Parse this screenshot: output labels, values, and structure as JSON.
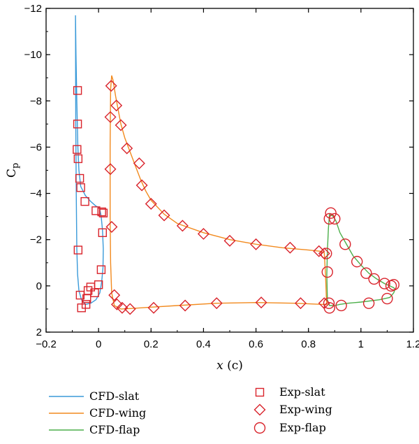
{
  "chart_data": {
    "type": "line",
    "xlabel": "x (c)",
    "ylabel": "Cp",
    "xlim": [
      -0.2,
      1.2
    ],
    "ylim": [
      2,
      -12
    ],
    "y_inverted": true,
    "grid": false,
    "legend_placement": "bottom",
    "x_ticks": [
      "−0.2",
      "0",
      "0.2",
      "0.4",
      "0.6",
      "0.8",
      "1",
      "1.2"
    ],
    "x_tick_values": [
      -0.2,
      0,
      0.2,
      0.4,
      0.6,
      0.8,
      1,
      1.2
    ],
    "y_ticks": [
      "−12",
      "−10",
      "−8",
      "−6",
      "−4",
      "−2",
      "0",
      "2"
    ],
    "y_tick_values": [
      -12,
      -10,
      -8,
      -6,
      -4,
      -2,
      0,
      2
    ],
    "colors": {
      "CFD-slat": "#3a9ad9",
      "CFD-wing": "#f28a1e",
      "CFD-flap": "#4caf4a",
      "exp": "#d9232b"
    },
    "series": [
      {
        "name": "CFD-slat",
        "kind": "line",
        "points": [
          [
            -0.088,
            -11.7
          ],
          [
            -0.086,
            -10.0
          ],
          [
            -0.083,
            -8.0
          ],
          [
            -0.079,
            -6.0
          ],
          [
            -0.075,
            -5.0
          ],
          [
            -0.068,
            -4.3
          ],
          [
            -0.05,
            -3.9
          ],
          [
            -0.03,
            -3.65
          ],
          [
            -0.01,
            -3.45
          ],
          [
            0.0,
            -3.4
          ],
          [
            0.005,
            -3.3
          ],
          [
            0.01,
            -3.0
          ],
          [
            0.015,
            -2.4
          ],
          [
            0.018,
            -1.6
          ],
          [
            0.017,
            -0.8
          ],
          [
            0.012,
            -0.2
          ],
          [
            0.005,
            0.3
          ],
          [
            -0.01,
            0.6
          ],
          [
            -0.03,
            0.75
          ],
          [
            -0.05,
            0.8
          ],
          [
            -0.065,
            0.6
          ],
          [
            -0.075,
            0.2
          ],
          [
            -0.08,
            -0.5
          ],
          [
            -0.083,
            -1.6
          ],
          [
            -0.085,
            -4.0
          ],
          [
            -0.087,
            -7.0
          ],
          [
            -0.088,
            -11.7
          ]
        ]
      },
      {
        "name": "CFD-wing",
        "kind": "line",
        "points": [
          [
            0.05,
            -9.1
          ],
          [
            0.055,
            -8.9
          ],
          [
            0.065,
            -8.2
          ],
          [
            0.075,
            -7.6
          ],
          [
            0.085,
            -7.0
          ],
          [
            0.1,
            -6.4
          ],
          [
            0.12,
            -5.8
          ],
          [
            0.14,
            -5.2
          ],
          [
            0.16,
            -4.6
          ],
          [
            0.18,
            -4.1
          ],
          [
            0.2,
            -3.7
          ],
          [
            0.25,
            -3.1
          ],
          [
            0.3,
            -2.7
          ],
          [
            0.4,
            -2.3
          ],
          [
            0.5,
            -2.0
          ],
          [
            0.6,
            -1.8
          ],
          [
            0.7,
            -1.65
          ],
          [
            0.8,
            -1.55
          ],
          [
            0.845,
            -1.5
          ],
          [
            0.86,
            -1.45
          ],
          [
            0.865,
            -0.5
          ],
          [
            0.868,
            0.5
          ],
          [
            0.87,
            0.8
          ],
          [
            0.85,
            0.8
          ],
          [
            0.75,
            0.75
          ],
          [
            0.6,
            0.72
          ],
          [
            0.45,
            0.75
          ],
          [
            0.3,
            0.85
          ],
          [
            0.2,
            0.92
          ],
          [
            0.12,
            0.98
          ],
          [
            0.085,
            1.0
          ],
          [
            0.06,
            0.85
          ],
          [
            0.05,
            0.3
          ],
          [
            0.046,
            -1.0
          ],
          [
            0.044,
            -3.0
          ],
          [
            0.044,
            -6.0
          ],
          [
            0.046,
            -8.5
          ],
          [
            0.05,
            -9.1
          ]
        ]
      },
      {
        "name": "CFD-flap",
        "kind": "line",
        "points": [
          [
            0.88,
            -3.1
          ],
          [
            0.895,
            -3.0
          ],
          [
            0.905,
            -2.8
          ],
          [
            0.92,
            -2.3
          ],
          [
            0.94,
            -1.9
          ],
          [
            0.97,
            -1.3
          ],
          [
            1.0,
            -0.9
          ],
          [
            1.03,
            -0.55
          ],
          [
            1.06,
            -0.3
          ],
          [
            1.09,
            -0.1
          ],
          [
            1.11,
            0.0
          ],
          [
            1.125,
            0.08
          ],
          [
            1.13,
            0.15
          ],
          [
            1.125,
            0.3
          ],
          [
            1.11,
            0.5
          ],
          [
            1.07,
            0.6
          ],
          [
            1.0,
            0.7
          ],
          [
            0.95,
            0.75
          ],
          [
            0.92,
            0.8
          ],
          [
            0.9,
            0.85
          ],
          [
            0.88,
            0.85
          ],
          [
            0.872,
            0.6
          ],
          [
            0.87,
            -0.5
          ],
          [
            0.872,
            -1.5
          ],
          [
            0.876,
            -2.5
          ],
          [
            0.88,
            -3.1
          ]
        ]
      },
      {
        "name": "Exp-slat",
        "kind": "square",
        "points": [
          [
            -0.08,
            -8.45
          ],
          [
            -0.08,
            -7.0
          ],
          [
            -0.082,
            -5.9
          ],
          [
            -0.078,
            -5.5
          ],
          [
            -0.072,
            -4.65
          ],
          [
            -0.068,
            -4.25
          ],
          [
            -0.052,
            -3.65
          ],
          [
            -0.01,
            -3.25
          ],
          [
            0.012,
            -3.2
          ],
          [
            0.018,
            -3.15
          ],
          [
            0.015,
            -2.3
          ],
          [
            0.01,
            -0.7
          ],
          [
            0.0,
            -0.05
          ],
          [
            -0.015,
            0.3
          ],
          [
            -0.03,
            0.05
          ],
          [
            -0.04,
            0.2
          ],
          [
            -0.045,
            0.55
          ],
          [
            -0.048,
            0.8
          ],
          [
            -0.065,
            0.95
          ],
          [
            -0.07,
            0.4
          ],
          [
            -0.078,
            -1.55
          ]
        ]
      },
      {
        "name": "Exp-wing",
        "kind": "diamond",
        "points": [
          [
            0.048,
            -8.65
          ],
          [
            0.068,
            -7.8
          ],
          [
            0.085,
            -6.95
          ],
          [
            0.108,
            -5.95
          ],
          [
            0.155,
            -5.3
          ],
          [
            0.165,
            -4.35
          ],
          [
            0.2,
            -3.55
          ],
          [
            0.25,
            -3.05
          ],
          [
            0.32,
            -2.6
          ],
          [
            0.4,
            -2.25
          ],
          [
            0.5,
            -1.95
          ],
          [
            0.6,
            -1.8
          ],
          [
            0.73,
            -1.65
          ],
          [
            0.84,
            -1.5
          ],
          [
            0.86,
            -1.4
          ],
          [
            0.045,
            -7.3
          ],
          [
            0.045,
            -5.05
          ],
          [
            0.05,
            -2.55
          ],
          [
            0.06,
            0.4
          ],
          [
            0.07,
            0.8
          ],
          [
            0.09,
            0.95
          ],
          [
            0.12,
            1.0
          ],
          [
            0.21,
            0.95
          ],
          [
            0.33,
            0.85
          ],
          [
            0.45,
            0.75
          ],
          [
            0.62,
            0.72
          ],
          [
            0.77,
            0.75
          ],
          [
            0.86,
            0.75
          ]
        ]
      },
      {
        "name": "Exp-flap",
        "kind": "circle",
        "points": [
          [
            0.885,
            -3.15
          ],
          [
            0.88,
            -2.9
          ],
          [
            0.9,
            -2.9
          ],
          [
            0.94,
            -1.8
          ],
          [
            0.985,
            -1.05
          ],
          [
            1.02,
            -0.55
          ],
          [
            1.05,
            -0.3
          ],
          [
            1.09,
            -0.1
          ],
          [
            1.115,
            0.0
          ],
          [
            1.125,
            -0.05
          ],
          [
            1.1,
            0.55
          ],
          [
            1.03,
            0.75
          ],
          [
            0.925,
            0.85
          ],
          [
            0.88,
            0.95
          ],
          [
            0.878,
            0.75
          ],
          [
            0.872,
            -0.6
          ],
          [
            0.868,
            -1.4
          ]
        ]
      }
    ],
    "legend": [
      {
        "label": "CFD-slat",
        "series": "CFD-slat"
      },
      {
        "label": "CFD-wing",
        "series": "CFD-wing"
      },
      {
        "label": "CFD-flap",
        "series": "CFD-flap"
      },
      {
        "label": "Exp-slat",
        "series": "Exp-slat"
      },
      {
        "label": "Exp-wing",
        "series": "Exp-wing"
      },
      {
        "label": "Exp-flap",
        "series": "Exp-flap"
      }
    ]
  }
}
